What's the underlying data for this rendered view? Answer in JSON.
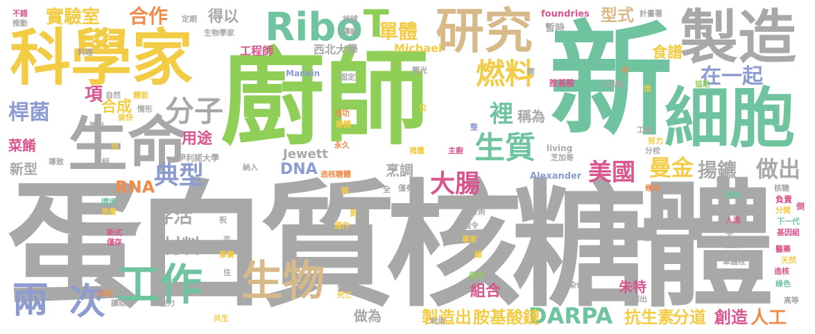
{
  "colors": {
    "gray": "#a8a8a8",
    "green": "#6fc39f",
    "lime": "#8fce57",
    "yellow": "#f2cc45",
    "tan": "#d8b98a",
    "pink": "#d9558d",
    "orange": "#ef8c4a",
    "blue": "#8c9bd0",
    "teal": "#58b9ad"
  },
  "words": [
    {
      "text": "蛋白質核糖體",
      "color": "gray"
    },
    {
      "text": "廚師",
      "color": "lime"
    },
    {
      "text": "新",
      "color": "green"
    },
    {
      "text": "科學家",
      "color": "yellow"
    },
    {
      "text": "生命",
      "color": "gray"
    },
    {
      "text": "製造",
      "color": "gray"
    },
    {
      "text": "細胞",
      "color": "green"
    },
    {
      "text": "研究",
      "color": "tan"
    },
    {
      "text": "Ribo",
      "color": "green"
    },
    {
      "text": "T",
      "color": "lime"
    },
    {
      "text": "單體",
      "color": "yellow"
    },
    {
      "text": "實驗室",
      "color": "yellow"
    },
    {
      "text": "合作",
      "color": "orange"
    },
    {
      "text": "得以",
      "color": "gray"
    },
    {
      "text": "型式",
      "color": "tan"
    },
    {
      "text": "燃料",
      "color": "yellow"
    },
    {
      "text": "裡",
      "color": "green"
    },
    {
      "text": "稱為",
      "color": "gray"
    },
    {
      "text": "生質",
      "color": "green"
    },
    {
      "text": "分子",
      "color": "gray"
    },
    {
      "text": "典型",
      "color": "blue"
    },
    {
      "text": "存活",
      "color": "gray"
    },
    {
      "text": "材料",
      "color": "gray"
    },
    {
      "text": "工作",
      "color": "green"
    },
    {
      "text": "生物",
      "color": "tan"
    },
    {
      "text": "兩",
      "color": "blue"
    },
    {
      "text": "次",
      "color": "blue"
    },
    {
      "text": "大腸",
      "color": "pink"
    },
    {
      "text": "美國",
      "color": "pink"
    },
    {
      "text": "曼金",
      "color": "yellow"
    },
    {
      "text": "在一起",
      "color": "blue"
    },
    {
      "text": "食譜",
      "color": "yellow"
    },
    {
      "text": "揚鑣",
      "color": "gray"
    },
    {
      "text": "做出",
      "color": "gray"
    },
    {
      "text": "DARPA",
      "color": "green"
    },
    {
      "text": "DNA",
      "color": "blue"
    },
    {
      "text": "RNA",
      "color": "orange"
    },
    {
      "text": "桿菌",
      "color": "blue"
    },
    {
      "text": "項",
      "color": "pink"
    },
    {
      "text": "合成",
      "color": "yellow"
    },
    {
      "text": "菜餚",
      "color": "pink"
    },
    {
      "text": "新型",
      "color": "gray"
    },
    {
      "text": "用途",
      "color": "pink"
    },
    {
      "text": "組合",
      "color": "pink"
    },
    {
      "text": "朱特",
      "color": "pink"
    },
    {
      "text": "製造出",
      "color": "yellow"
    },
    {
      "text": "胺基酸鏈",
      "color": "yellow"
    },
    {
      "text": "抗生素",
      "color": "yellow"
    },
    {
      "text": "分道",
      "color": "yellow"
    },
    {
      "text": "創造",
      "color": "pink"
    },
    {
      "text": "人工",
      "color": "orange"
    },
    {
      "text": "做為",
      "color": "gray"
    },
    {
      "text": "烹調",
      "color": "gray"
    },
    {
      "text": "Jewett",
      "color": "gray"
    },
    {
      "text": "Michael",
      "color": "yellow"
    },
    {
      "text": "Mankin",
      "color": "blue"
    },
    {
      "text": "Alexander",
      "color": "blue"
    },
    {
      "text": "foundries",
      "color": "pink"
    },
    {
      "text": "living",
      "color": "gray"
    },
    {
      "text": "工程師",
      "color": "pink"
    },
    {
      "text": "西北大學",
      "color": "gray"
    },
    {
      "text": "伊利諾大學",
      "color": "gray"
    },
    {
      "text": "暫時",
      "color": "gray"
    },
    {
      "text": "計畫署",
      "color": "gray"
    },
    {
      "text": "不錯",
      "color": "pink"
    },
    {
      "text": "推動",
      "color": "gray"
    },
    {
      "text": "定期",
      "color": "gray"
    },
    {
      "text": "生物學家",
      "color": "gray"
    },
    {
      "text": "地球",
      "color": "gray"
    },
    {
      "text": "傳給",
      "color": "gray"
    },
    {
      "text": "料理",
      "color": "gray"
    },
    {
      "text": "固定",
      "color": "gray"
    },
    {
      "text": "螢光",
      "color": "gray"
    },
    {
      "text": "胺基酸",
      "color": "pink"
    },
    {
      "text": "工具箱",
      "color": "gray"
    },
    {
      "text": "自然",
      "color": "gray"
    },
    {
      "text": "體能",
      "color": "yellow"
    },
    {
      "text": "需",
      "color": "gray"
    },
    {
      "text": "中",
      "color": "orange"
    },
    {
      "text": "協助",
      "color": "lime"
    },
    {
      "text": "造",
      "color": "yellow"
    },
    {
      "text": "情形",
      "color": "gray"
    },
    {
      "text": "偷快",
      "color": "yellow"
    },
    {
      "text": "基對",
      "color": "gray"
    },
    {
      "text": "位",
      "color": "yellow"
    },
    {
      "text": "成功",
      "color": "orange"
    },
    {
      "text": "糖體",
      "color": "yellow"
    },
    {
      "text": "整",
      "color": "blue"
    },
    {
      "text": "工廠",
      "color": "gray"
    },
    {
      "text": "努力",
      "color": "yellow"
    },
    {
      "text": "分校",
      "color": "gray"
    },
    {
      "text": "拴",
      "color": "yellow"
    },
    {
      "text": "永久",
      "color": "orange"
    },
    {
      "text": "揭露",
      "color": "yellow"
    },
    {
      "text": "主廚",
      "color": "pink"
    },
    {
      "text": "芝加哥",
      "color": "gray"
    },
    {
      "text": "導致",
      "color": "gray"
    },
    {
      "text": "重組",
      "color": "gray"
    },
    {
      "text": "納入",
      "color": "gray"
    },
    {
      "text": "造核糖體",
      "color": "orange"
    },
    {
      "text": "幾年",
      "color": "orange"
    },
    {
      "text": "類",
      "color": "yellow"
    },
    {
      "text": "全",
      "color": "gray"
    },
    {
      "text": "僅有",
      "color": "gray"
    },
    {
      "text": "核糖",
      "color": "gray"
    },
    {
      "text": "用餐",
      "color": "yellow"
    },
    {
      "text": "事情",
      "color": "gray"
    },
    {
      "text": "環境",
      "color": "green"
    },
    {
      "text": "祝",
      "color": "gray"
    },
    {
      "text": "更",
      "color": "yellow"
    },
    {
      "text": "技術",
      "color": "gray"
    },
    {
      "text": "酵素",
      "color": "green"
    },
    {
      "text": "支持",
      "color": "gray"
    },
    {
      "text": "負責",
      "color": "pink"
    },
    {
      "text": "分開",
      "color": "yellow"
    },
    {
      "text": "倒",
      "color": "pink"
    },
    {
      "text": "新式",
      "color": "pink"
    },
    {
      "text": "僅存",
      "color": "pink"
    },
    {
      "text": "嘗試",
      "color": "gray"
    },
    {
      "text": "運作",
      "color": "yellow"
    },
    {
      "text": "指令",
      "color": "gray"
    },
    {
      "text": "人造",
      "color": "pink"
    },
    {
      "text": "非",
      "color": "gray"
    },
    {
      "text": "下一代",
      "color": "green"
    },
    {
      "text": "基因組",
      "color": "pink"
    },
    {
      "text": "迄",
      "color": "gray"
    },
    {
      "text": "事實",
      "color": "yellow"
    },
    {
      "text": "專家",
      "color": "yellow"
    },
    {
      "text": "國防",
      "color": "gray"
    },
    {
      "text": "醫藥",
      "color": "pink"
    },
    {
      "text": "天然",
      "color": "yellow"
    },
    {
      "text": "鹼",
      "color": "yellow"
    },
    {
      "text": "單體栓",
      "color": "gray"
    },
    {
      "text": "造核",
      "color": "pink"
    },
    {
      "text": "住",
      "color": "gray"
    },
    {
      "text": "蛋白",
      "color": "lime"
    },
    {
      "text": "染色體",
      "color": "gray"
    },
    {
      "text": "綠色",
      "color": "green"
    },
    {
      "text": "未知",
      "color": "orange"
    },
    {
      "text": "讀取",
      "color": "gray"
    },
    {
      "text": "能力",
      "color": "gray"
    },
    {
      "text": "藥物",
      "color": "gray"
    },
    {
      "text": "死亡",
      "color": "yellow"
    },
    {
      "text": "烹調出",
      "color": "gray"
    },
    {
      "text": "高等",
      "color": "gray"
    },
    {
      "text": "共生",
      "color": "yellow"
    },
    {
      "text": "利用",
      "color": "gray"
    }
  ]
}
